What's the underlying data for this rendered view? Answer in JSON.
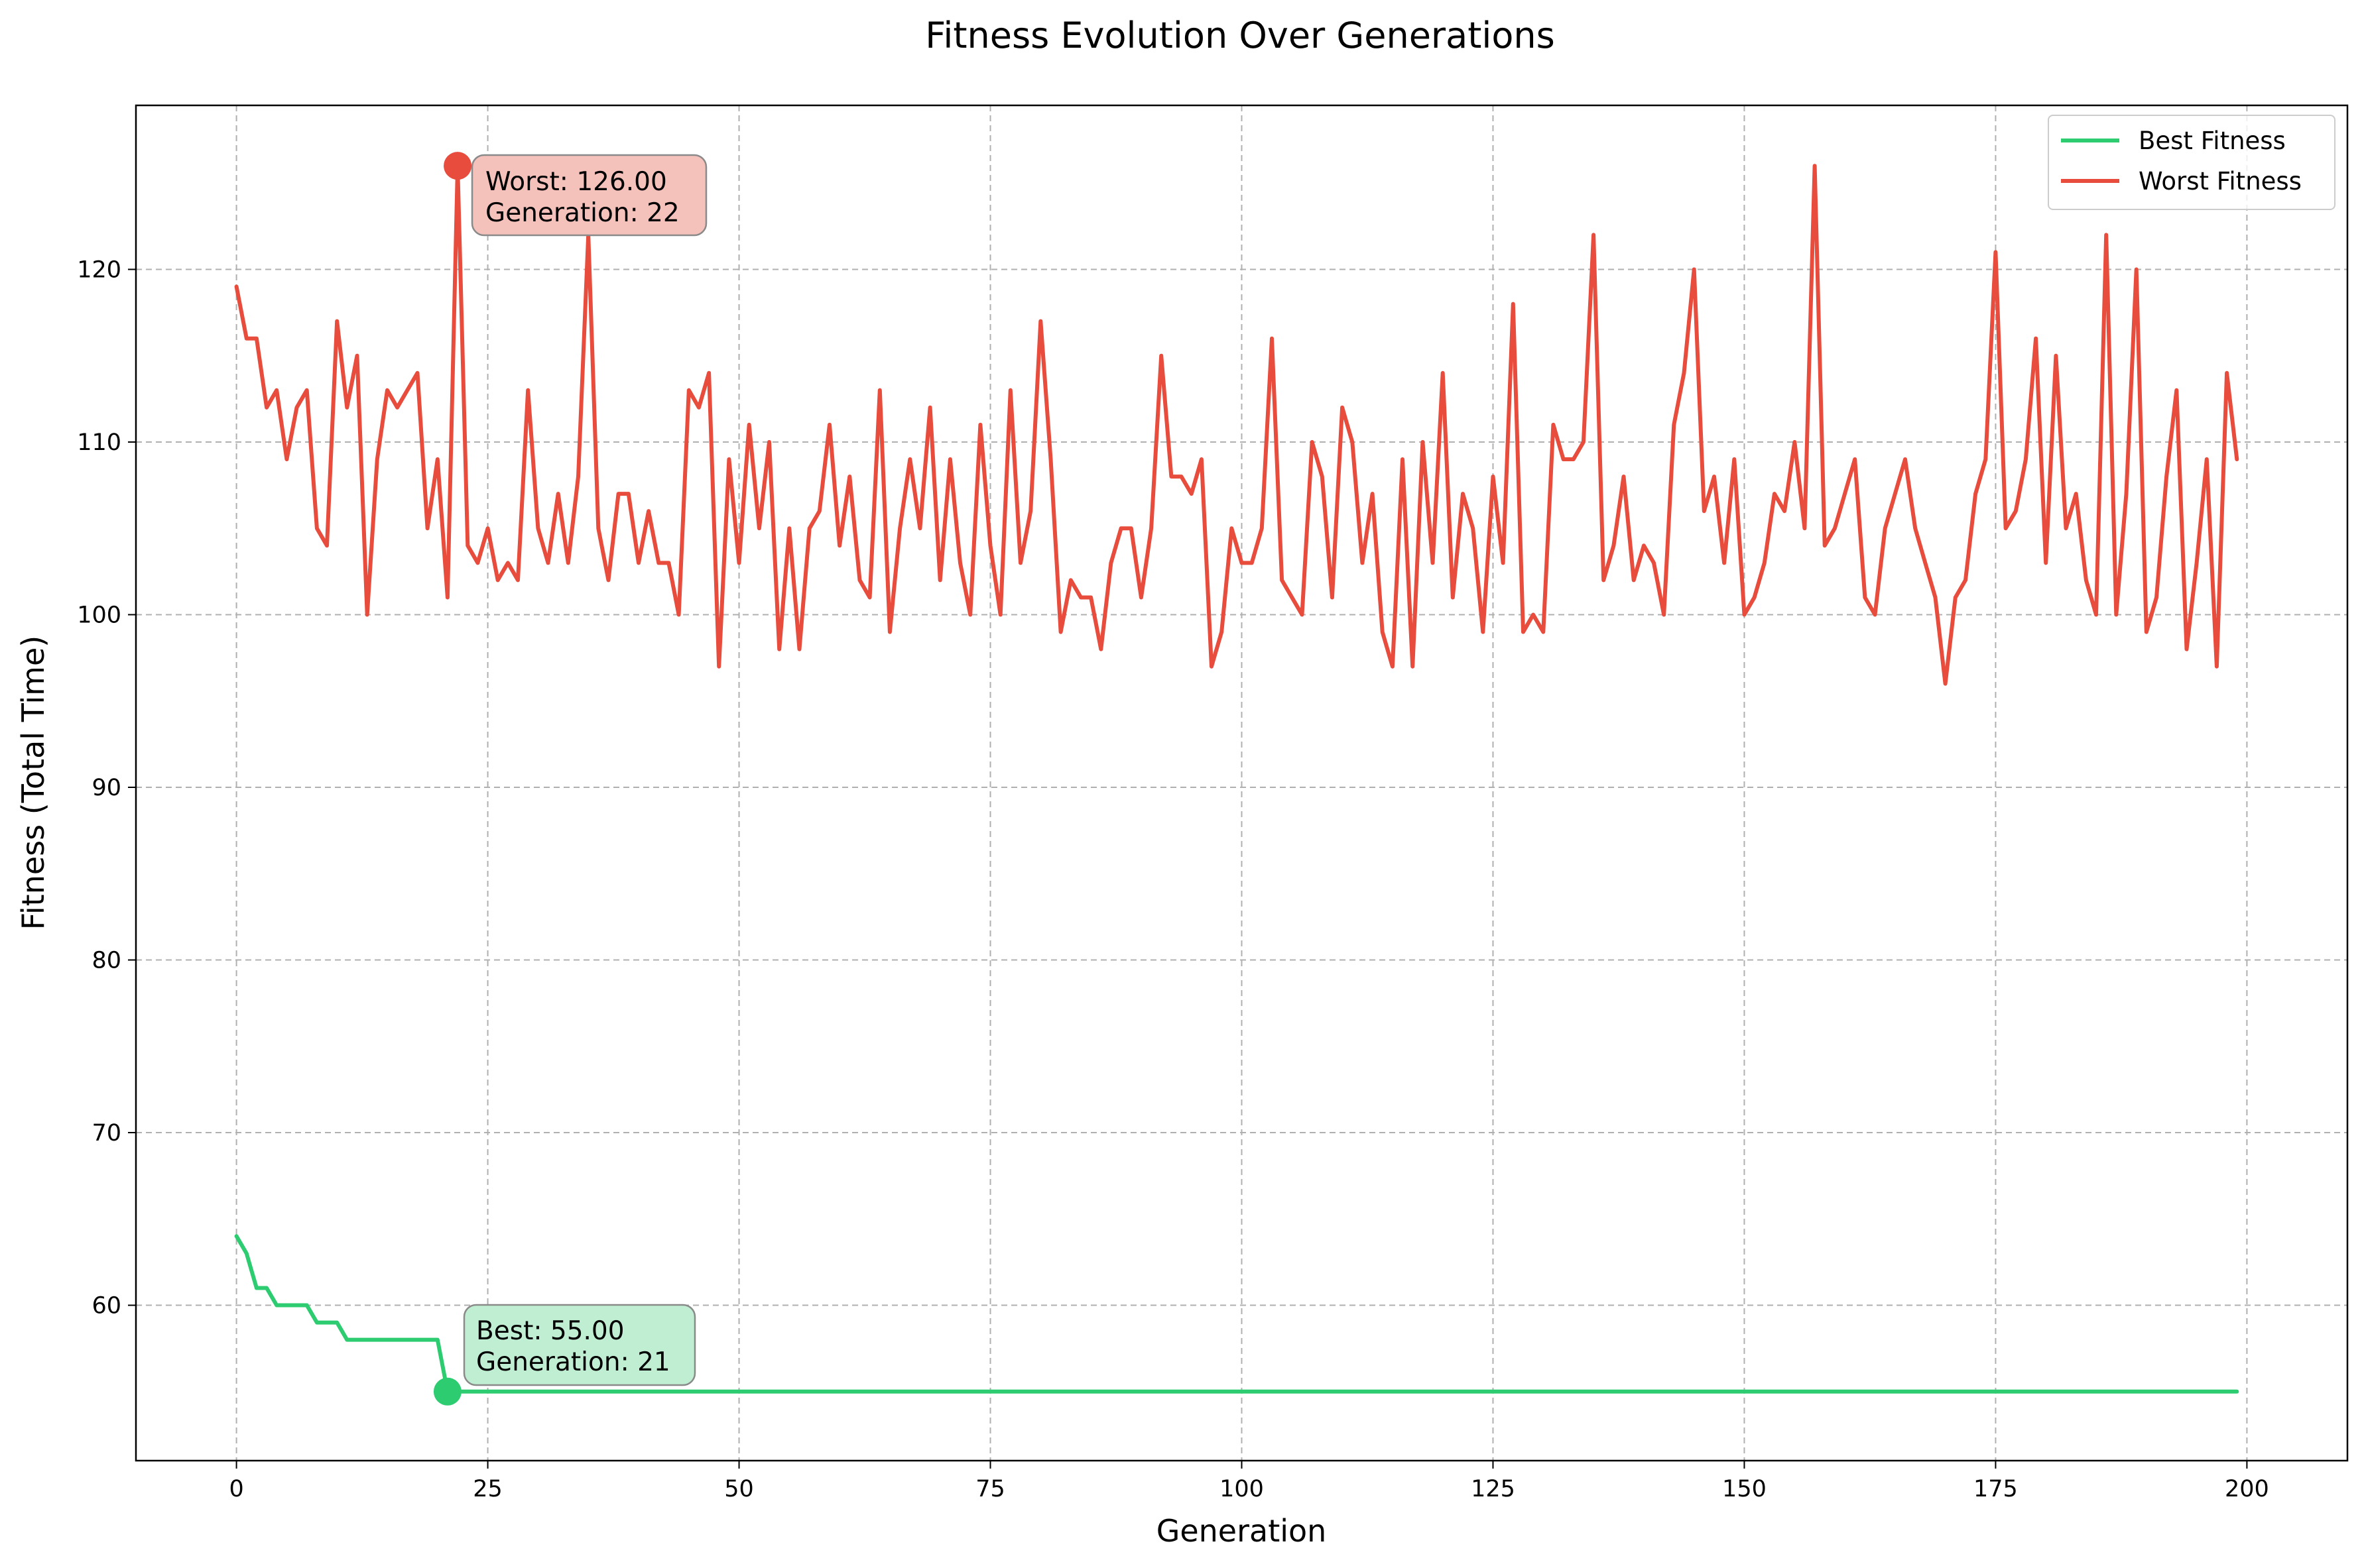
{
  "chart_data": {
    "type": "line",
    "title": "Fitness Evolution Over Generations",
    "xlabel": "Generation",
    "ylabel": "Fitness (Total Time)",
    "xlim": [
      -10,
      210
    ],
    "ylim": [
      51,
      129.5
    ],
    "xticks": [
      0,
      25,
      50,
      75,
      100,
      125,
      150,
      175,
      200
    ],
    "yticks": [
      60,
      70,
      80,
      90,
      100,
      110,
      120
    ],
    "xtick_labels": [
      "0",
      "25",
      "50",
      "75",
      "100",
      "125",
      "150",
      "175",
      "200"
    ],
    "ytick_labels": [
      "60",
      "70",
      "80",
      "90",
      "100",
      "110",
      "120"
    ],
    "grid": true,
    "legend_position": "top-right",
    "series": [
      {
        "name": "Best Fitness",
        "color": "#2ecc71",
        "values": [
          64,
          63,
          61,
          61,
          60,
          60,
          60,
          60,
          59,
          59,
          59,
          58,
          58,
          58,
          58,
          58,
          58,
          58,
          58,
          58,
          58,
          55,
          55,
          55,
          55,
          55,
          55,
          55,
          55,
          55,
          55,
          55,
          55,
          55,
          55,
          55,
          55,
          55,
          55,
          55,
          55,
          55,
          55,
          55,
          55,
          55,
          55,
          55,
          55,
          55,
          55,
          55,
          55,
          55,
          55,
          55,
          55,
          55,
          55,
          55,
          55,
          55,
          55,
          55,
          55,
          55,
          55,
          55,
          55,
          55,
          55,
          55,
          55,
          55,
          55,
          55,
          55,
          55,
          55,
          55,
          55,
          55,
          55,
          55,
          55,
          55,
          55,
          55,
          55,
          55,
          55,
          55,
          55,
          55,
          55,
          55,
          55,
          55,
          55,
          55,
          55,
          55,
          55,
          55,
          55,
          55,
          55,
          55,
          55,
          55,
          55,
          55,
          55,
          55,
          55,
          55,
          55,
          55,
          55,
          55,
          55,
          55,
          55,
          55,
          55,
          55,
          55,
          55,
          55,
          55,
          55,
          55,
          55,
          55,
          55,
          55,
          55,
          55,
          55,
          55,
          55,
          55,
          55,
          55,
          55,
          55,
          55,
          55,
          55,
          55,
          55,
          55,
          55,
          55,
          55,
          55,
          55,
          55,
          55,
          55,
          55,
          55,
          55,
          55,
          55,
          55,
          55,
          55,
          55,
          55,
          55,
          55,
          55,
          55,
          55,
          55,
          55,
          55,
          55,
          55,
          55,
          55,
          55,
          55,
          55,
          55,
          55,
          55,
          55,
          55,
          55,
          55,
          55,
          55,
          55,
          55,
          55,
          55,
          55,
          55
        ]
      },
      {
        "name": "Worst Fitness",
        "color": "#e74c3c",
        "values": [
          119,
          116,
          116,
          112,
          113,
          109,
          112,
          113,
          105,
          104,
          117,
          112,
          115,
          100,
          109,
          113,
          112,
          113,
          114,
          105,
          109,
          101,
          126,
          104,
          103,
          105,
          102,
          103,
          102,
          113,
          105,
          103,
          107,
          103,
          108,
          122,
          105,
          102,
          107,
          107,
          103,
          106,
          103,
          103,
          100,
          113,
          112,
          114,
          97,
          109,
          103,
          111,
          105,
          110,
          98,
          105,
          98,
          105,
          106,
          111,
          104,
          108,
          102,
          101,
          113,
          99,
          105,
          109,
          105,
          112,
          102,
          109,
          103,
          100,
          111,
          104,
          100,
          113,
          103,
          106,
          117,
          109,
          99,
          102,
          101,
          101,
          98,
          103,
          105,
          105,
          101,
          105,
          115,
          108,
          108,
          107,
          109,
          97,
          99,
          105,
          103,
          103,
          105,
          116,
          102,
          101,
          100,
          110,
          108,
          101,
          112,
          110,
          103,
          107,
          99,
          97,
          109,
          97,
          110,
          103,
          114,
          101,
          107,
          105,
          99,
          108,
          103,
          118,
          99,
          100,
          99,
          111,
          109,
          109,
          110,
          122,
          102,
          104,
          108,
          102,
          104,
          103,
          100,
          111,
          114,
          120,
          106,
          108,
          103,
          109,
          100,
          101,
          103,
          107,
          106,
          110,
          105,
          126,
          104,
          105,
          107,
          109,
          101,
          100,
          105,
          107,
          109,
          105,
          103,
          101,
          96,
          101,
          102,
          107,
          109,
          121,
          105,
          106,
          109,
          116,
          103,
          115,
          105,
          107,
          102,
          100,
          122,
          100,
          107,
          120,
          99,
          101,
          108,
          113,
          98,
          103,
          109,
          97,
          114,
          109
        ]
      }
    ],
    "annotations": [
      {
        "series": "Worst Fitness",
        "x": 22,
        "y": 126,
        "line1": "Worst: 126.00",
        "line2": "Generation: 22",
        "color": "#e74c3c",
        "box_fill": "#f5c1bb"
      },
      {
        "series": "Best Fitness",
        "x": 21,
        "y": 55,
        "line1": "Best: 55.00",
        "line2": "Generation: 21",
        "color": "#2ecc71",
        "box_fill": "#bfeed2"
      }
    ]
  }
}
